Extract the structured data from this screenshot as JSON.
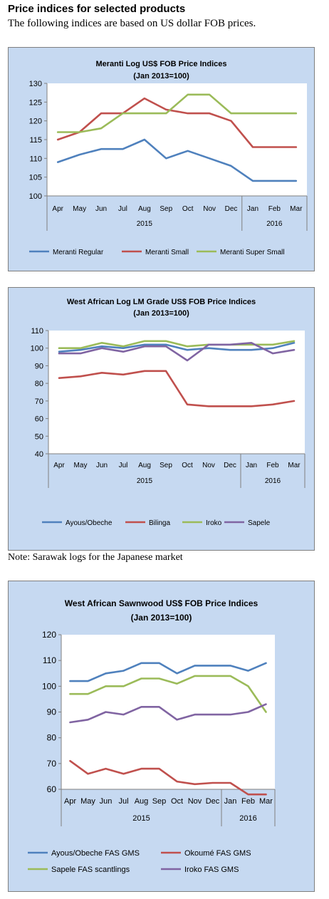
{
  "header": {
    "title": "Price indices for selected products",
    "subtitle": "The following indices are based on US dollar FOB prices."
  },
  "note": "Note: Sarawak logs for the Japanese market",
  "chart_data": [
    {
      "type": "line",
      "title": "Meranti Log US$ FOB Price Indices",
      "subtitle": "(Jan 2013=100)",
      "categories": [
        "Apr",
        "May",
        "Jun",
        "Jul",
        "Aug",
        "Sep",
        "Oct",
        "Nov",
        "Dec",
        "Jan",
        "Feb",
        "Mar"
      ],
      "groups": [
        {
          "label": "2015",
          "count": 9
        },
        {
          "label": "2016",
          "count": 3
        }
      ],
      "ylim": [
        100,
        130
      ],
      "yticks": [
        100,
        105,
        110,
        115,
        120,
        125,
        130
      ],
      "grid": false,
      "legend": "bottom",
      "series": [
        {
          "name": "Meranti Regular",
          "color": "#4f81bd",
          "values": [
            109,
            111,
            112.5,
            112.5,
            115,
            110,
            112,
            110,
            108,
            104,
            104,
            104
          ]
        },
        {
          "name": "Meranti Small",
          "color": "#c0504d",
          "values": [
            115,
            117,
            122,
            122,
            126,
            123,
            122,
            122,
            120,
            113,
            113,
            113
          ]
        },
        {
          "name": "Meranti Super Small",
          "color": "#9bbb59",
          "values": [
            117,
            117,
            118,
            122,
            122,
            122,
            127,
            127,
            122,
            122,
            122,
            122
          ]
        }
      ]
    },
    {
      "type": "line",
      "title": "West African Log LM Grade US$ FOB Price Indices",
      "subtitle": "(Jan 2013=100)",
      "categories": [
        "Apr",
        "May",
        "Jun",
        "Jul",
        "Aug",
        "Sep",
        "Oct",
        "Nov",
        "Dec",
        "Jan",
        "Feb",
        "Mar"
      ],
      "groups": [
        {
          "label": "2015",
          "count": 9
        },
        {
          "label": "2016",
          "count": 3
        }
      ],
      "ylim": [
        40,
        110
      ],
      "yticks": [
        40,
        50,
        60,
        70,
        80,
        90,
        100,
        110
      ],
      "grid": false,
      "legend": "bottom",
      "series": [
        {
          "name": "Ayous/Obeche",
          "color": "#4f81bd",
          "values": [
            98,
            99,
            101,
            100,
            102,
            102,
            99,
            100,
            99,
            99,
            100,
            103
          ]
        },
        {
          "name": "Bilinga",
          "color": "#c0504d",
          "values": [
            83,
            84,
            86,
            85,
            87,
            87,
            68,
            67,
            67,
            67,
            68,
            70
          ]
        },
        {
          "name": "Iroko",
          "color": "#9bbb59",
          "values": [
            100,
            100,
            103,
            101,
            104,
            104,
            101,
            102,
            102,
            102,
            102,
            104
          ]
        },
        {
          "name": "Sapele",
          "color": "#8064a2",
          "values": [
            97,
            97,
            100,
            98,
            101,
            101,
            93,
            102,
            102,
            103,
            97,
            99
          ]
        }
      ]
    },
    {
      "type": "line",
      "title": "West African Sawnwood US$ FOB Price Indices",
      "subtitle": "(Jan 2013=100)",
      "categories": [
        "Apr",
        "May",
        "Jun",
        "Jul",
        "Aug",
        "Sep",
        "Oct",
        "Nov",
        "Dec",
        "Jan",
        "Feb",
        "Mar"
      ],
      "groups": [
        {
          "label": "2015",
          "count": 9
        },
        {
          "label": "2016",
          "count": 3
        }
      ],
      "ylim": [
        60,
        120
      ],
      "yticks": [
        60,
        70,
        80,
        90,
        100,
        110,
        120
      ],
      "grid": false,
      "legend": "bottom",
      "series": [
        {
          "name": "Ayous/Obeche  FAS GMS",
          "color": "#4f81bd",
          "values": [
            102,
            102,
            105,
            106,
            109,
            109,
            105,
            108,
            108,
            108,
            106,
            109
          ]
        },
        {
          "name": "Okoumé  FAS GMS",
          "color": "#c0504d",
          "values": [
            71,
            66,
            68,
            66,
            68,
            68,
            63,
            62,
            62.5,
            62.5,
            58,
            58
          ]
        },
        {
          "name": "Sapele FAS scantlings",
          "color": "#9bbb59",
          "values": [
            97,
            97,
            100,
            100,
            103,
            103,
            101,
            104,
            104,
            104,
            100,
            90
          ]
        },
        {
          "name": "Iroko FAS GMS",
          "color": "#8064a2",
          "values": [
            86,
            87,
            90,
            89,
            92,
            92,
            87,
            89,
            89,
            89,
            90,
            93
          ]
        }
      ]
    }
  ]
}
